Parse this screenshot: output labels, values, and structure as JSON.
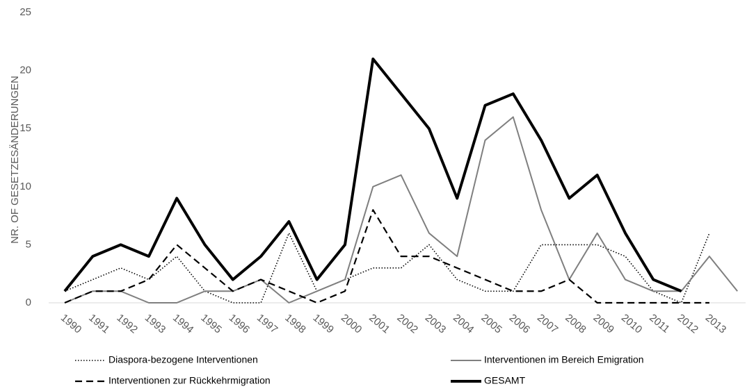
{
  "chart_data": {
    "type": "line",
    "y_label": "NR. OF GESETZESÄNDERUNGEN",
    "categories": [
      "1990",
      "1991",
      "1992",
      "1993",
      "1994",
      "1995",
      "1996",
      "1997",
      "1998",
      "1999",
      "2000",
      "2001",
      "2002",
      "2003",
      "2004",
      "2005",
      "2006",
      "2007",
      "2008",
      "2009",
      "2010",
      "2011",
      "2012",
      "2013",
      null
    ],
    "ylim": [
      0,
      25
    ],
    "yticks": [
      0,
      5,
      10,
      15,
      20,
      25
    ],
    "grid": false,
    "series": [
      {
        "name": "Diaspora-bezogene Interventionen",
        "color": "#000000",
        "style": "dotted",
        "values": [
          1,
          2,
          3,
          2,
          4,
          1,
          0,
          0,
          6,
          1,
          2,
          3,
          3,
          5,
          2,
          1,
          1,
          5,
          5,
          5,
          4,
          1,
          0,
          6,
          null
        ]
      },
      {
        "name": "Interventionen im Bereich Emigration",
        "color": "#7f7f7f",
        "style": "solid",
        "values": [
          0,
          1,
          1,
          0,
          0,
          1,
          1,
          2,
          0,
          1,
          2,
          10,
          11,
          6,
          4,
          14,
          16,
          8,
          2,
          6,
          2,
          1,
          1,
          4,
          1
        ]
      },
      {
        "name": "Interventionen zur Rückkehrmigration",
        "color": "#000000",
        "style": "dashed",
        "values": [
          0,
          1,
          1,
          2,
          5,
          3,
          1,
          2,
          1,
          0,
          1,
          8,
          4,
          4,
          3,
          2,
          1,
          1,
          2,
          0,
          0,
          0,
          0,
          0,
          null
        ]
      },
      {
        "name": "GESAMT",
        "color": "#000000",
        "style": "bold",
        "values": [
          1,
          4,
          5,
          4,
          9,
          5,
          2,
          4,
          7,
          2,
          5,
          21,
          18,
          15,
          9,
          17,
          18,
          14,
          9,
          11,
          6,
          2,
          1,
          null,
          null
        ]
      }
    ]
  }
}
